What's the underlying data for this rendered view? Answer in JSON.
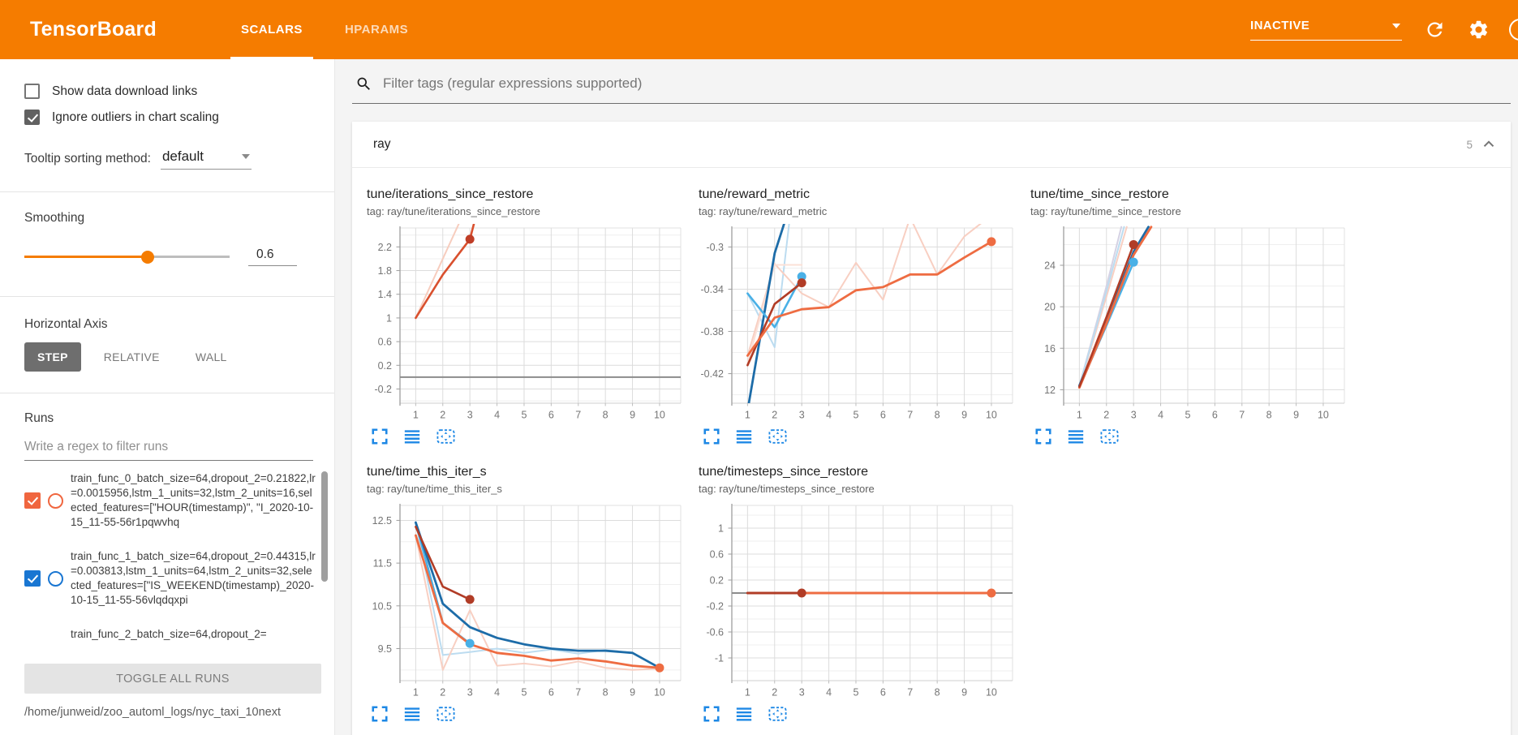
{
  "header": {
    "title": "TensorBoard",
    "tabs": [
      {
        "label": "SCALARS",
        "active": true
      },
      {
        "label": "HPARAMS",
        "active": false
      }
    ],
    "status_dropdown": "INACTIVE",
    "icons": [
      "refresh-icon",
      "settings-icon",
      "help-icon"
    ]
  },
  "sidebar": {
    "checkboxes": [
      {
        "label": "Show data download links",
        "checked": false
      },
      {
        "label": "Ignore outliers in chart scaling",
        "checked": true
      }
    ],
    "tooltip_sorting": {
      "label": "Tooltip sorting method:",
      "value": "default"
    },
    "smoothing": {
      "label": "Smoothing",
      "value": "0.6",
      "percent": 60
    },
    "horizontal_axis": {
      "label": "Horizontal Axis",
      "options": [
        {
          "label": "STEP",
          "active": true
        },
        {
          "label": "RELATIVE",
          "active": false
        },
        {
          "label": "WALL",
          "active": false
        }
      ]
    },
    "runs": {
      "label": "Runs",
      "filter_placeholder": "Write a regex to filter runs",
      "items": [
        {
          "name": "train_func_0_batch_size=64,dropout_2=0.21822,lr=0.0015956,lstm_1_units=32,lstm_2_units=16,selected_features=[\"HOUR(timestamp)\", \"I_2020-10-15_11-55-56r1pqwvhq",
          "checked": true,
          "color": "#f0663f"
        },
        {
          "name": "train_func_1_batch_size=64,dropout_2=0.44315,lr=0.003813,lstm_1_units=64,lstm_2_units=32,selected_features=[\"IS_WEEKEND(timestamp)_2020-10-15_11-55-56vlqdqxpi",
          "checked": true,
          "color": "#1976d2"
        },
        {
          "name": "train_func_2_batch_size=64,dropout_2=",
          "partial": true
        }
      ],
      "toggle_all_label": "TOGGLE ALL RUNS",
      "log_dir": "/home/junweid/zoo_automl_logs/nyc_taxi_10next"
    }
  },
  "main": {
    "filter_placeholder": "Filter tags (regular expressions supported)",
    "section": {
      "name": "ray",
      "count": "5"
    }
  },
  "colors": {
    "brand_orange": "#f57c00",
    "icon_blue": "#1e88e5",
    "run_orange": "#f0663f",
    "run_blue": "#1976d2"
  },
  "chart_data": [
    {
      "type": "line",
      "title": "tune/iterations_since_restore",
      "tag": "tag: ray/tune/iterations_since_restore",
      "xticks": [
        1,
        2,
        3,
        4,
        5,
        6,
        7,
        8,
        9,
        10
      ],
      "xlim": [
        0.42,
        10.78
      ],
      "yticks": [
        -0.2,
        0.2,
        0.6,
        1,
        1.4,
        1.8,
        2.2
      ],
      "ylim": [
        -0.44,
        2.52
      ],
      "zero_line": true,
      "series": [
        {
          "name": "orange-raw",
          "color": "#f7cdbe",
          "width": 2,
          "points": [
            [
              1,
              1
            ],
            [
              2,
              2
            ],
            [
              3,
              3
            ]
          ]
        },
        {
          "name": "orange-smoothed",
          "color": "#d9502e",
          "width": 2.6,
          "points": [
            [
              1,
              1
            ],
            [
              2,
              1.73
            ],
            [
              3,
              2.33
            ],
            [
              3.35,
              2.95
            ]
          ],
          "dot": [
            3,
            2.33
          ],
          "dot_color": "#bf3d26"
        }
      ]
    },
    {
      "type": "line",
      "title": "tune/reward_metric",
      "tag": "tag: ray/tune/reward_metric",
      "xticks": [
        1,
        2,
        3,
        4,
        5,
        6,
        7,
        8,
        9,
        10
      ],
      "xlim": [
        0.42,
        10.78
      ],
      "yticks": [
        -0.42,
        -0.38,
        -0.34,
        -0.3
      ],
      "ylim": [
        -0.448,
        -0.282
      ],
      "zero_line": false,
      "series": [
        {
          "name": "blue-raw",
          "color": "#bcdcf0",
          "width": 2,
          "points": [
            [
              1,
              -0.344
            ],
            [
              2,
              -0.395
            ],
            [
              2.55,
              -0.275
            ]
          ]
        },
        {
          "name": "orange-raw",
          "color": "#f8cfc2",
          "width": 2,
          "points": [
            [
              1,
              -0.403
            ],
            [
              2,
              -0.316
            ],
            [
              3,
              -0.344
            ],
            [
              4,
              -0.357
            ],
            [
              5,
              -0.315
            ],
            [
              6,
              -0.35
            ],
            [
              7,
              -0.272
            ],
            [
              8,
              -0.326
            ],
            [
              9,
              -0.29
            ],
            [
              10,
              -0.27
            ]
          ]
        },
        {
          "name": "orange-raw-2",
          "color": "#fbe0d7",
          "width": 2,
          "points": [
            [
              1,
              -0.41
            ],
            [
              2,
              -0.317
            ],
            [
              3,
              -0.317
            ]
          ]
        },
        {
          "name": "darkblue-smoothed",
          "color": "#1d6ca8",
          "width": 2.8,
          "points": [
            [
              1,
              -0.455
            ],
            [
              2,
              -0.306
            ],
            [
              2.45,
              -0.27
            ]
          ]
        },
        {
          "name": "cyan-smoothed",
          "color": "#49b0e6",
          "width": 2.6,
          "points": [
            [
              1,
              -0.344
            ],
            [
              2,
              -0.376
            ],
            [
              3,
              -0.328
            ]
          ],
          "dot": [
            3,
            -0.328
          ]
        },
        {
          "name": "darkred-smoothed",
          "color": "#b13c26",
          "width": 2.6,
          "points": [
            [
              1,
              -0.412
            ],
            [
              2,
              -0.354
            ],
            [
              3,
              -0.334
            ]
          ],
          "dot": [
            3,
            -0.334
          ]
        },
        {
          "name": "orange-smoothed",
          "color": "#ee6c42",
          "width": 2.8,
          "points": [
            [
              1,
              -0.403
            ],
            [
              2,
              -0.367
            ],
            [
              3,
              -0.359
            ],
            [
              4,
              -0.357
            ],
            [
              5,
              -0.341
            ],
            [
              6,
              -0.338
            ],
            [
              7,
              -0.326
            ],
            [
              8,
              -0.326
            ],
            [
              9,
              -0.31
            ],
            [
              10,
              -0.295
            ]
          ],
          "dot": [
            10,
            -0.295
          ]
        }
      ]
    },
    {
      "type": "line",
      "title": "tune/time_since_restore",
      "tag": "tag: ray/tune/time_since_restore",
      "xticks": [
        1,
        2,
        3,
        4,
        5,
        6,
        7,
        8,
        9,
        10
      ],
      "xlim": [
        0.42,
        10.78
      ],
      "yticks": [
        12,
        16,
        20,
        24
      ],
      "ylim": [
        10.7,
        27.6
      ],
      "zero_line": false,
      "series": [
        {
          "name": "lavender-raw",
          "color": "#d5d2e4",
          "width": 2,
          "points": [
            [
              1,
              12.35
            ],
            [
              2,
              22
            ],
            [
              2.55,
              27.7
            ]
          ]
        },
        {
          "name": "pink-raw",
          "color": "#f8cfc2",
          "width": 2,
          "points": [
            [
              1,
              12.3
            ],
            [
              2,
              21
            ],
            [
              2.75,
              27.7
            ]
          ]
        },
        {
          "name": "lightblue-raw",
          "color": "#bcdcf0",
          "width": 2,
          "points": [
            [
              1,
              12.35
            ],
            [
              2,
              21.5
            ],
            [
              2.65,
              27.7
            ]
          ]
        },
        {
          "name": "cyan-smoothed",
          "color": "#49b0e6",
          "width": 2.6,
          "points": [
            [
              1,
              12.3
            ],
            [
              2,
              18.2
            ],
            [
              3,
              24.3
            ]
          ],
          "dot": [
            3,
            24.3
          ]
        },
        {
          "name": "blue-smoothed",
          "color": "#1d6ca8",
          "width": 2.8,
          "points": [
            [
              1,
              12.4
            ],
            [
              2,
              18.6
            ],
            [
              3,
              25.3
            ],
            [
              3.55,
              27.7
            ]
          ]
        },
        {
          "name": "orange-smoothed",
          "color": "#ee6c42",
          "width": 2.8,
          "points": [
            [
              1,
              12.2
            ],
            [
              2,
              18.4
            ],
            [
              3,
              25
            ],
            [
              3.65,
              27.7
            ]
          ]
        },
        {
          "name": "darkred-smoothed",
          "color": "#b13c26",
          "width": 2.6,
          "points": [
            [
              1,
              12.3
            ],
            [
              2,
              19
            ],
            [
              3,
              26
            ]
          ],
          "dot": [
            3,
            26
          ]
        }
      ]
    },
    {
      "type": "line",
      "title": "tune/time_this_iter_s",
      "tag": "tag: ray/tune/time_this_iter_s",
      "xticks": [
        1,
        2,
        3,
        4,
        5,
        6,
        7,
        8,
        9,
        10
      ],
      "xlim": [
        0.42,
        10.78
      ],
      "yticks": [
        9.5,
        10.5,
        11.5,
        12.5
      ],
      "ylim": [
        8.75,
        12.85
      ],
      "zero_line": false,
      "series": [
        {
          "name": "lightblue-raw",
          "color": "#bcdcf0",
          "width": 2,
          "points": [
            [
              1,
              12.45
            ],
            [
              2,
              9.35
            ],
            [
              3,
              9.42
            ],
            [
              4,
              9.5
            ],
            [
              5,
              9.4
            ],
            [
              6,
              9.48
            ],
            [
              7,
              9.38
            ],
            [
              8,
              9.47
            ],
            [
              9,
              9.4
            ],
            [
              10,
              9.05
            ]
          ]
        },
        {
          "name": "pink-raw",
          "color": "#f8cfc2",
          "width": 2,
          "points": [
            [
              1,
              12.15
            ],
            [
              2,
              9.0
            ],
            [
              3,
              10.4
            ],
            [
              4,
              9.1
            ],
            [
              5,
              9.15
            ],
            [
              6,
              9.08
            ],
            [
              7,
              9.2
            ],
            [
              8,
              9.05
            ],
            [
              9,
              9.0
            ],
            [
              10,
              9.03
            ]
          ]
        },
        {
          "name": "cyan-smoothed",
          "color": "#49b0e6",
          "width": 2.6,
          "points": [
            [
              1,
              12.45
            ],
            [
              2,
              10.1
            ],
            [
              3,
              9.62
            ]
          ],
          "dot": [
            3,
            9.62
          ]
        },
        {
          "name": "blue-smoothed",
          "color": "#1d6ca8",
          "width": 2.8,
          "points": [
            [
              1,
              12.45
            ],
            [
              2,
              10.55
            ],
            [
              3,
              10.0
            ],
            [
              4,
              9.75
            ],
            [
              5,
              9.6
            ],
            [
              6,
              9.5
            ],
            [
              7,
              9.45
            ],
            [
              8,
              9.45
            ],
            [
              9,
              9.4
            ],
            [
              10,
              9.05
            ]
          ]
        },
        {
          "name": "darkred-smoothed",
          "color": "#b13c26",
          "width": 2.6,
          "points": [
            [
              1,
              12.35
            ],
            [
              2,
              10.95
            ],
            [
              3,
              10.65
            ]
          ],
          "dot": [
            3,
            10.65
          ]
        },
        {
          "name": "orange-smoothed",
          "color": "#ee6c42",
          "width": 2.8,
          "points": [
            [
              1,
              12.15
            ],
            [
              2,
              10.1
            ],
            [
              3,
              9.6
            ],
            [
              4,
              9.4
            ],
            [
              5,
              9.33
            ],
            [
              6,
              9.22
            ],
            [
              7,
              9.27
            ],
            [
              8,
              9.2
            ],
            [
              9,
              9.1
            ],
            [
              10,
              9.05
            ]
          ],
          "dot": [
            10,
            9.05
          ]
        }
      ]
    },
    {
      "type": "line",
      "title": "tune/timesteps_since_restore",
      "tag": "tag: ray/tune/timesteps_since_restore",
      "xticks": [
        1,
        2,
        3,
        4,
        5,
        6,
        7,
        8,
        9,
        10
      ],
      "xlim": [
        0.42,
        10.78
      ],
      "yticks": [
        -1,
        -0.6,
        -0.2,
        0.2,
        0.6,
        1
      ],
      "ylim": [
        -1.35,
        1.35
      ],
      "zero_line": true,
      "series": [
        {
          "name": "orange-smoothed",
          "color": "#ee6c42",
          "width": 3,
          "points": [
            [
              1,
              0
            ],
            [
              10,
              0
            ]
          ],
          "dot": [
            10,
            0
          ]
        },
        {
          "name": "darkred-smoothed",
          "color": "#b13c26",
          "width": 3,
          "points": [
            [
              1,
              0
            ],
            [
              3,
              0
            ]
          ],
          "dot": [
            3,
            0
          ]
        }
      ]
    }
  ]
}
